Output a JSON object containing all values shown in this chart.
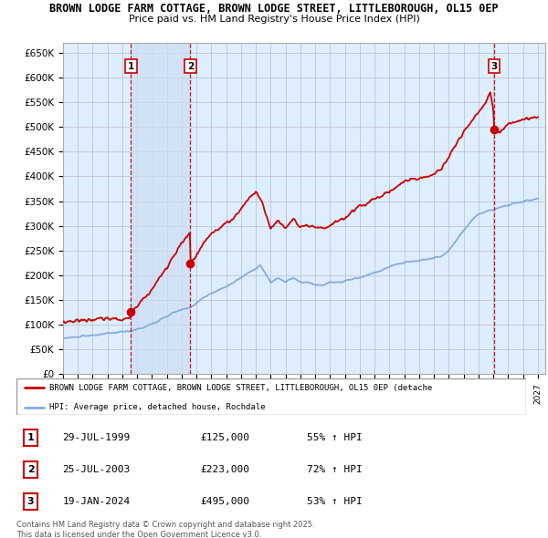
{
  "title1": "BROWN LODGE FARM COTTAGE, BROWN LODGE STREET, LITTLEBOROUGH, OL15 0EP",
  "title2": "Price paid vs. HM Land Registry's House Price Index (HPI)",
  "ylabel_ticks": [
    "£0",
    "£50K",
    "£100K",
    "£150K",
    "£200K",
    "£250K",
    "£300K",
    "£350K",
    "£400K",
    "£450K",
    "£500K",
    "£550K",
    "£600K",
    "£650K"
  ],
  "ytick_values": [
    0,
    50000,
    100000,
    150000,
    200000,
    250000,
    300000,
    350000,
    400000,
    450000,
    500000,
    550000,
    600000,
    650000
  ],
  "xmin": 1995.0,
  "xmax": 2027.5,
  "ymin": 0,
  "ymax": 670000,
  "transactions": [
    {
      "num": 1,
      "date": "29-JUL-1999",
      "price": 125000,
      "pct": "55%",
      "dir": "↑",
      "x": 1999.58
    },
    {
      "num": 2,
      "date": "25-JUL-2003",
      "price": 223000,
      "pct": "72%",
      "dir": "↑",
      "x": 2003.58
    },
    {
      "num": 3,
      "date": "19-JAN-2024",
      "price": 495000,
      "pct": "53%",
      "dir": "↑",
      "x": 2024.05
    }
  ],
  "legend_line1": "BROWN LODGE FARM COTTAGE, BROWN LODGE STREET, LITTLEBOROUGH, OL15 0EP (detache",
  "legend_line2": "HPI: Average price, detached house, Rochdale",
  "footer": "Contains HM Land Registry data © Crown copyright and database right 2025.\nThis data is licensed under the Open Government Licence v3.0.",
  "property_color": "#cc0000",
  "hpi_color": "#88aadd",
  "bg_color": "#ddeeff",
  "grid_color": "#bbbbcc",
  "vline_color": "#cc0000",
  "shade_color": "#ccddf5"
}
